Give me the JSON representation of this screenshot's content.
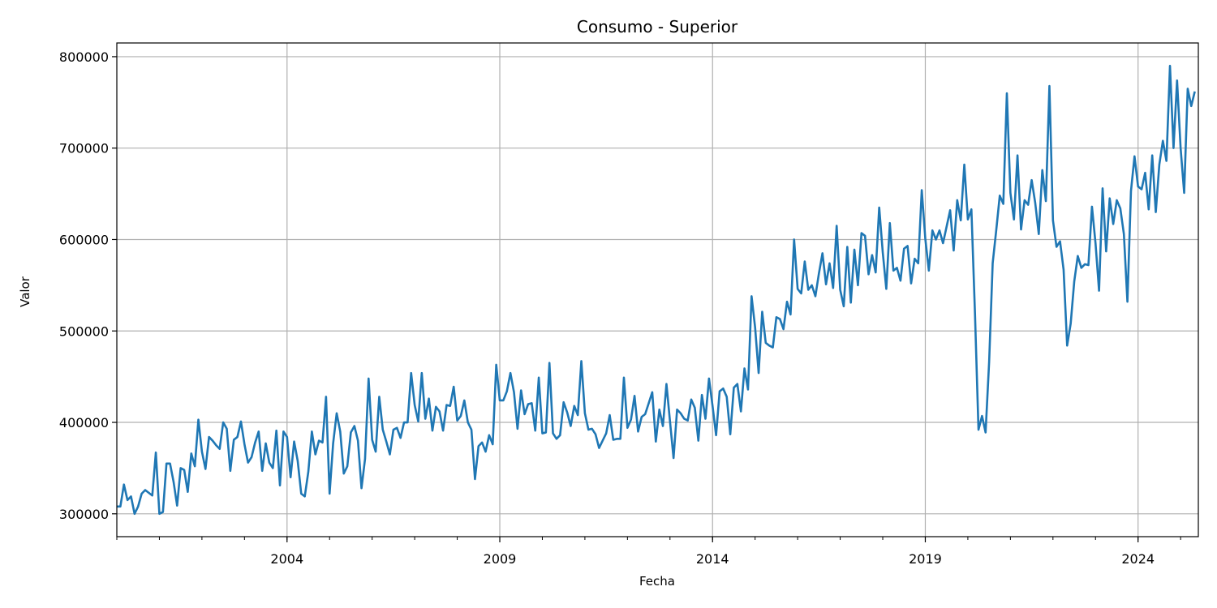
{
  "chart_data": {
    "type": "line",
    "title": "Consumo - Superior",
    "xlabel": "Fecha",
    "ylabel": "Valor",
    "x_start": "2000-01",
    "x_frequency": "monthly",
    "xlim": [
      "2000-01",
      "2025-06"
    ],
    "ylim": [
      275000,
      815000
    ],
    "grid": true,
    "line_color": "#1f77b4",
    "x_ticks": [
      "2004",
      "2009",
      "2014",
      "2019",
      "2024"
    ],
    "y_ticks": [
      "300000",
      "400000",
      "500000",
      "600000",
      "700000",
      "800000"
    ],
    "series": [
      {
        "values": [
          308000,
          308000,
          332000,
          315000,
          319000,
          300000,
          308000,
          322000,
          326000,
          323000,
          320000,
          367000,
          300000,
          302000,
          355000,
          355000,
          335000,
          309000,
          350000,
          348000,
          324000,
          366000,
          352000,
          403000,
          368000,
          349000,
          384000,
          380000,
          375000,
          371000,
          400000,
          393000,
          347000,
          381000,
          384000,
          401000,
          376000,
          356000,
          362000,
          378000,
          390000,
          347000,
          377000,
          356000,
          350000,
          391000,
          331000,
          390000,
          384000,
          340000,
          379000,
          358000,
          322000,
          319000,
          346000,
          390000,
          365000,
          380000,
          378000,
          428000,
          322000,
          377000,
          410000,
          390000,
          344000,
          352000,
          389000,
          396000,
          380000,
          328000,
          360000,
          448000,
          381000,
          368000,
          428000,
          392000,
          379000,
          365000,
          392000,
          394000,
          383000,
          400000,
          400000,
          454000,
          419000,
          401000,
          454000,
          404000,
          426000,
          391000,
          417000,
          412000,
          391000,
          419000,
          418000,
          439000,
          402000,
          407000,
          424000,
          400000,
          392000,
          338000,
          374000,
          378000,
          368000,
          386000,
          376000,
          463000,
          424000,
          424000,
          434000,
          454000,
          433000,
          393000,
          435000,
          409000,
          420000,
          421000,
          391000,
          449000,
          388000,
          389000,
          465000,
          388000,
          382000,
          386000,
          422000,
          411000,
          396000,
          418000,
          408000,
          467000,
          410000,
          392000,
          393000,
          387000,
          372000,
          380000,
          388000,
          408000,
          381000,
          382000,
          382000,
          449000,
          394000,
          403000,
          429000,
          390000,
          406000,
          409000,
          421000,
          433000,
          379000,
          414000,
          396000,
          442000,
          401000,
          361000,
          414000,
          410000,
          404000,
          402000,
          425000,
          416000,
          380000,
          430000,
          404000,
          448000,
          418000,
          386000,
          434000,
          437000,
          428000,
          387000,
          438000,
          442000,
          412000,
          459000,
          436000,
          538000,
          504000,
          454000,
          521000,
          487000,
          484000,
          482000,
          515000,
          513000,
          502000,
          532000,
          518000,
          600000,
          546000,
          541000,
          576000,
          545000,
          550000,
          538000,
          563000,
          585000,
          551000,
          574000,
          547000,
          615000,
          545000,
          527000,
          592000,
          531000,
          589000,
          550000,
          607000,
          604000,
          562000,
          583000,
          564000,
          635000,
          586000,
          546000,
          618000,
          566000,
          569000,
          555000,
          590000,
          593000,
          552000,
          579000,
          574000,
          654000,
          601000,
          566000,
          610000,
          600000,
          610000,
          596000,
          614000,
          632000,
          588000,
          643000,
          621000,
          682000,
          622000,
          633000,
          520000,
          392000,
          407000,
          389000,
          466000,
          574000,
          610000,
          648000,
          639000,
          760000,
          651000,
          622000,
          692000,
          611000,
          643000,
          638000,
          665000,
          640000,
          606000,
          676000,
          642000,
          768000,
          621000,
          592000,
          598000,
          567000,
          484000,
          508000,
          554000,
          582000,
          569000,
          573000,
          572000,
          636000,
          596000,
          544000,
          656000,
          587000,
          645000,
          617000,
          643000,
          634000,
          606000,
          532000,
          653000,
          691000,
          658000,
          655000,
          673000,
          633000,
          692000,
          630000,
          682000,
          708000,
          686000,
          790000,
          700000,
          774000,
          700000,
          651000,
          765000,
          746000,
          762000
        ]
      }
    ]
  }
}
